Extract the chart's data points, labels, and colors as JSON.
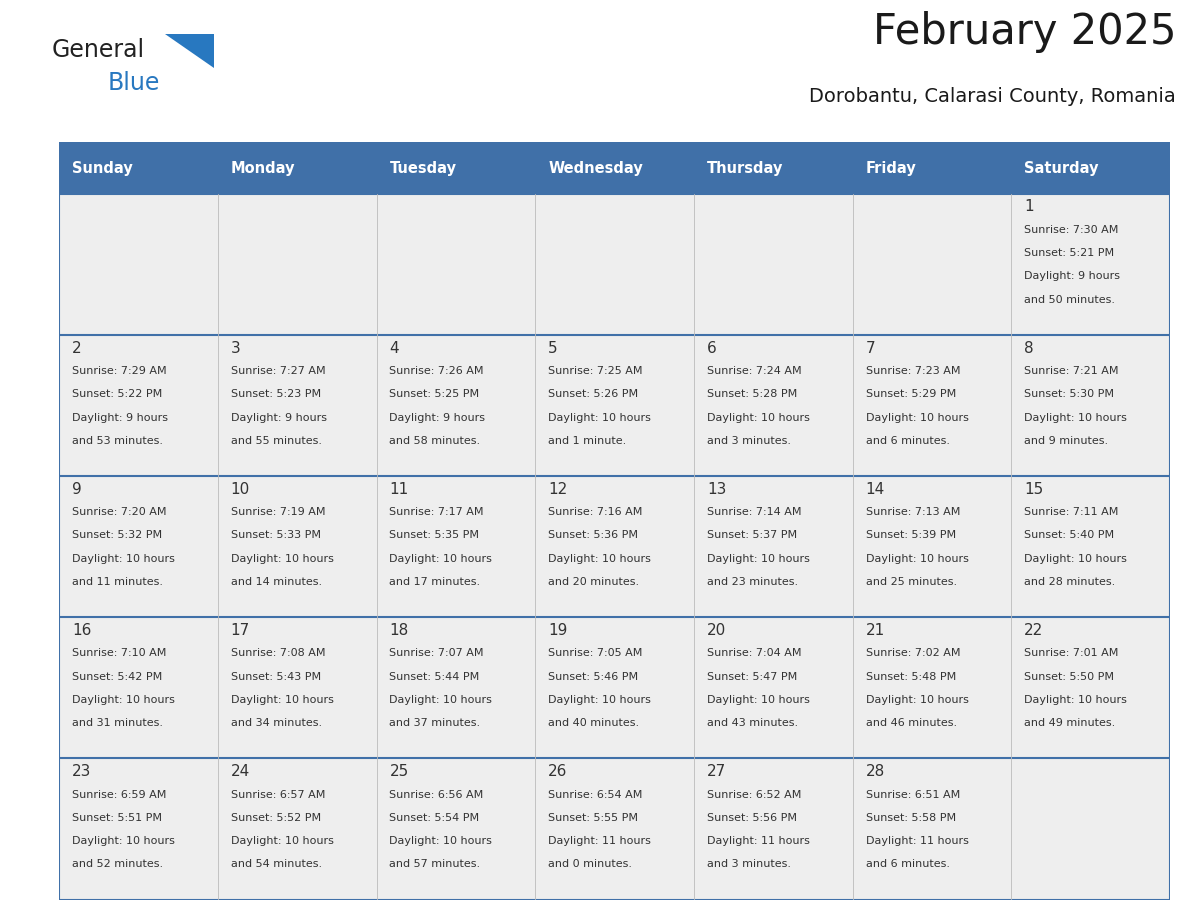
{
  "title": "February 2025",
  "subtitle": "Dorobantu, Calarasi County, Romania",
  "days_of_week": [
    "Sunday",
    "Monday",
    "Tuesday",
    "Wednesday",
    "Thursday",
    "Friday",
    "Saturday"
  ],
  "header_bg": "#4070A8",
  "header_text": "#FFFFFF",
  "cell_bg": "#EEEEEE",
  "cell_border": "#4070A8",
  "day_number_color": "#333333",
  "text_color": "#333333",
  "title_color": "#1a1a1a",
  "logo_general_color": "#222222",
  "logo_blue_color": "#2878C0",
  "calendar_data": [
    [
      null,
      null,
      null,
      null,
      null,
      null,
      {
        "day": 1,
        "sunrise": "7:30 AM",
        "sunset": "5:21 PM",
        "daylight1": "9 hours",
        "daylight2": "and 50 minutes."
      }
    ],
    [
      {
        "day": 2,
        "sunrise": "7:29 AM",
        "sunset": "5:22 PM",
        "daylight1": "9 hours",
        "daylight2": "and 53 minutes."
      },
      {
        "day": 3,
        "sunrise": "7:27 AM",
        "sunset": "5:23 PM",
        "daylight1": "9 hours",
        "daylight2": "and 55 minutes."
      },
      {
        "day": 4,
        "sunrise": "7:26 AM",
        "sunset": "5:25 PM",
        "daylight1": "9 hours",
        "daylight2": "and 58 minutes."
      },
      {
        "day": 5,
        "sunrise": "7:25 AM",
        "sunset": "5:26 PM",
        "daylight1": "10 hours",
        "daylight2": "and 1 minute."
      },
      {
        "day": 6,
        "sunrise": "7:24 AM",
        "sunset": "5:28 PM",
        "daylight1": "10 hours",
        "daylight2": "and 3 minutes."
      },
      {
        "day": 7,
        "sunrise": "7:23 AM",
        "sunset": "5:29 PM",
        "daylight1": "10 hours",
        "daylight2": "and 6 minutes."
      },
      {
        "day": 8,
        "sunrise": "7:21 AM",
        "sunset": "5:30 PM",
        "daylight1": "10 hours",
        "daylight2": "and 9 minutes."
      }
    ],
    [
      {
        "day": 9,
        "sunrise": "7:20 AM",
        "sunset": "5:32 PM",
        "daylight1": "10 hours",
        "daylight2": "and 11 minutes."
      },
      {
        "day": 10,
        "sunrise": "7:19 AM",
        "sunset": "5:33 PM",
        "daylight1": "10 hours",
        "daylight2": "and 14 minutes."
      },
      {
        "day": 11,
        "sunrise": "7:17 AM",
        "sunset": "5:35 PM",
        "daylight1": "10 hours",
        "daylight2": "and 17 minutes."
      },
      {
        "day": 12,
        "sunrise": "7:16 AM",
        "sunset": "5:36 PM",
        "daylight1": "10 hours",
        "daylight2": "and 20 minutes."
      },
      {
        "day": 13,
        "sunrise": "7:14 AM",
        "sunset": "5:37 PM",
        "daylight1": "10 hours",
        "daylight2": "and 23 minutes."
      },
      {
        "day": 14,
        "sunrise": "7:13 AM",
        "sunset": "5:39 PM",
        "daylight1": "10 hours",
        "daylight2": "and 25 minutes."
      },
      {
        "day": 15,
        "sunrise": "7:11 AM",
        "sunset": "5:40 PM",
        "daylight1": "10 hours",
        "daylight2": "and 28 minutes."
      }
    ],
    [
      {
        "day": 16,
        "sunrise": "7:10 AM",
        "sunset": "5:42 PM",
        "daylight1": "10 hours",
        "daylight2": "and 31 minutes."
      },
      {
        "day": 17,
        "sunrise": "7:08 AM",
        "sunset": "5:43 PM",
        "daylight1": "10 hours",
        "daylight2": "and 34 minutes."
      },
      {
        "day": 18,
        "sunrise": "7:07 AM",
        "sunset": "5:44 PM",
        "daylight1": "10 hours",
        "daylight2": "and 37 minutes."
      },
      {
        "day": 19,
        "sunrise": "7:05 AM",
        "sunset": "5:46 PM",
        "daylight1": "10 hours",
        "daylight2": "and 40 minutes."
      },
      {
        "day": 20,
        "sunrise": "7:04 AM",
        "sunset": "5:47 PM",
        "daylight1": "10 hours",
        "daylight2": "and 43 minutes."
      },
      {
        "day": 21,
        "sunrise": "7:02 AM",
        "sunset": "5:48 PM",
        "daylight1": "10 hours",
        "daylight2": "and 46 minutes."
      },
      {
        "day": 22,
        "sunrise": "7:01 AM",
        "sunset": "5:50 PM",
        "daylight1": "10 hours",
        "daylight2": "and 49 minutes."
      }
    ],
    [
      {
        "day": 23,
        "sunrise": "6:59 AM",
        "sunset": "5:51 PM",
        "daylight1": "10 hours",
        "daylight2": "and 52 minutes."
      },
      {
        "day": 24,
        "sunrise": "6:57 AM",
        "sunset": "5:52 PM",
        "daylight1": "10 hours",
        "daylight2": "and 54 minutes."
      },
      {
        "day": 25,
        "sunrise": "6:56 AM",
        "sunset": "5:54 PM",
        "daylight1": "10 hours",
        "daylight2": "and 57 minutes."
      },
      {
        "day": 26,
        "sunrise": "6:54 AM",
        "sunset": "5:55 PM",
        "daylight1": "11 hours",
        "daylight2": "and 0 minutes."
      },
      {
        "day": 27,
        "sunrise": "6:52 AM",
        "sunset": "5:56 PM",
        "daylight1": "11 hours",
        "daylight2": "and 3 minutes."
      },
      {
        "day": 28,
        "sunrise": "6:51 AM",
        "sunset": "5:58 PM",
        "daylight1": "11 hours",
        "daylight2": "and 6 minutes."
      },
      null
    ]
  ],
  "fig_width": 11.88,
  "fig_height": 9.18,
  "dpi": 100
}
